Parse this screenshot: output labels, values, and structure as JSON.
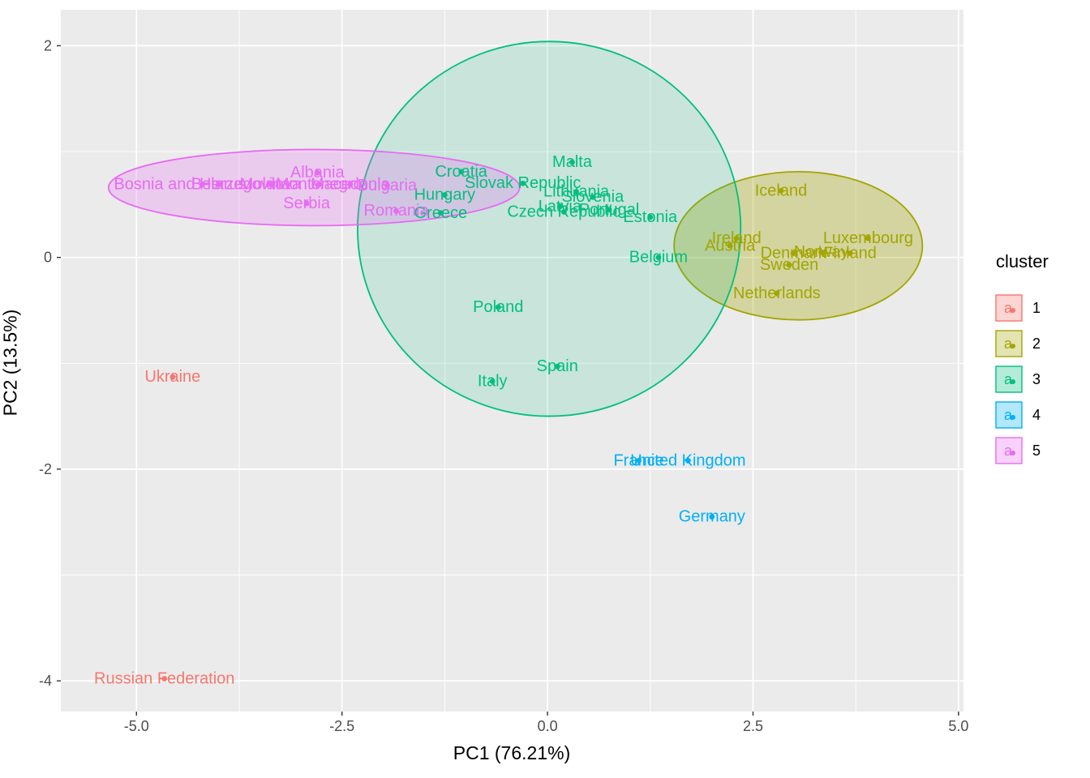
{
  "chart_data": {
    "type": "scatter",
    "title": "",
    "xlabel": "PC1 (76.21%)",
    "ylabel": "PC2 (13.5%)",
    "legend_title": "cluster",
    "xlim": [
      -5.92,
      5.06
    ],
    "ylim": [
      -4.29,
      2.34
    ],
    "x_ticks": [
      {
        "v": -5.0,
        "label": "-5.0"
      },
      {
        "v": -2.5,
        "label": "-2.5"
      },
      {
        "v": 0.0,
        "label": "0.0"
      },
      {
        "v": 2.5,
        "label": "2.5"
      },
      {
        "v": 5.0,
        "label": "5.0"
      }
    ],
    "y_ticks": [
      {
        "v": -4,
        "label": "-4"
      },
      {
        "v": -2,
        "label": "-2"
      },
      {
        "v": 0,
        "label": "0"
      },
      {
        "v": 2,
        "label": "2"
      }
    ],
    "x_minor_ticks": [
      -3.75,
      -1.25,
      1.25,
      3.75
    ],
    "y_minor_ticks": [
      -3,
      -1,
      1
    ],
    "panel_bg": "#EBEBEB",
    "grid_color": "#FFFFFF",
    "tick_label_color": "#4D4D4D",
    "legend_position": "right",
    "clusters": [
      {
        "id": "1",
        "color": "#F8766D",
        "ellipse": null,
        "points": [
          {
            "label": "Ukraine",
            "x": -4.56,
            "y": -1.13
          },
          {
            "label": "Russian Federation",
            "x": -4.66,
            "y": -3.98
          }
        ]
      },
      {
        "id": "2",
        "color": "#A3A500",
        "ellipse": {
          "cx": 3.05,
          "cy": 0.11,
          "rx": 1.51,
          "ry": 0.7,
          "fill_opacity": 0.32
        },
        "points": [
          {
            "label": "Iceland",
            "x": 2.84,
            "y": 0.63
          },
          {
            "label": "Ireland",
            "x": 2.3,
            "y": 0.18
          },
          {
            "label": "Austria",
            "x": 2.22,
            "y": 0.11
          },
          {
            "label": "Luxembourg",
            "x": 3.9,
            "y": 0.18
          },
          {
            "label": "Denmark",
            "x": 2.99,
            "y": 0.04
          },
          {
            "label": "Norway",
            "x": 3.33,
            "y": 0.05
          },
          {
            "label": "Finland",
            "x": 3.68,
            "y": 0.04
          },
          {
            "label": "Sweden",
            "x": 2.94,
            "y": -0.07
          },
          {
            "label": "Netherlands",
            "x": 2.79,
            "y": -0.34
          }
        ]
      },
      {
        "id": "3",
        "color": "#00BF7D",
        "ellipse": {
          "cx": 0.02,
          "cy": 0.27,
          "rx": 2.33,
          "ry": 1.77,
          "fill_opacity": 0.15
        },
        "points": [
          {
            "label": "Malta",
            "x": 0.3,
            "y": 0.9
          },
          {
            "label": "Croatia",
            "x": -1.05,
            "y": 0.81
          },
          {
            "label": "Slovak Republic",
            "x": -0.3,
            "y": 0.7
          },
          {
            "label": "Lithuania",
            "x": 0.35,
            "y": 0.62
          },
          {
            "label": "Hungary",
            "x": -1.25,
            "y": 0.59
          },
          {
            "label": "Slovenia",
            "x": 0.55,
            "y": 0.57
          },
          {
            "label": "Latvia",
            "x": 0.15,
            "y": 0.48
          },
          {
            "label": "Portugal",
            "x": 0.75,
            "y": 0.45
          },
          {
            "label": "Czech Republic",
            "x": 0.2,
            "y": 0.43
          },
          {
            "label": "Greece",
            "x": -1.3,
            "y": 0.42
          },
          {
            "label": "Estonia",
            "x": 1.25,
            "y": 0.38
          },
          {
            "label": "Belgium",
            "x": 1.35,
            "y": 0.0
          },
          {
            "label": "Poland",
            "x": -0.6,
            "y": -0.47
          },
          {
            "label": "Spain",
            "x": 0.12,
            "y": -1.03
          },
          {
            "label": "Italy",
            "x": -0.67,
            "y": -1.17
          }
        ]
      },
      {
        "id": "4",
        "color": "#00B0F6",
        "ellipse": null,
        "points": [
          {
            "label": "France",
            "x": 1.11,
            "y": -1.92
          },
          {
            "label": "United Kingdom",
            "x": 1.71,
            "y": -1.92
          },
          {
            "label": "Germany",
            "x": 2.0,
            "y": -2.45
          }
        ]
      },
      {
        "id": "5",
        "color": "#E76BF3",
        "ellipse": {
          "cx": -2.84,
          "cy": 0.66,
          "rx": 2.5,
          "ry": 0.36,
          "fill_opacity": 0.25
        },
        "points": [
          {
            "label": "Bosnia and Herzegovina",
            "x": -4.2,
            "y": 0.69
          },
          {
            "label": "Belarus",
            "x": -4.0,
            "y": 0.69
          },
          {
            "label": "Moldova",
            "x": -3.37,
            "y": 0.69
          },
          {
            "label": "Montenegro",
            "x": -2.78,
            "y": 0.69
          },
          {
            "label": "Macedonia",
            "x": -2.4,
            "y": 0.69
          },
          {
            "label": "Bulgaria",
            "x": -1.95,
            "y": 0.68
          },
          {
            "label": "Albania",
            "x": -2.8,
            "y": 0.8
          },
          {
            "label": "Serbia",
            "x": -2.93,
            "y": 0.51
          },
          {
            "label": "Romania",
            "x": -1.84,
            "y": 0.44
          }
        ]
      }
    ],
    "legend_items": [
      {
        "label": "1"
      },
      {
        "label": "2"
      },
      {
        "label": "3"
      },
      {
        "label": "4"
      },
      {
        "label": "5"
      }
    ]
  }
}
